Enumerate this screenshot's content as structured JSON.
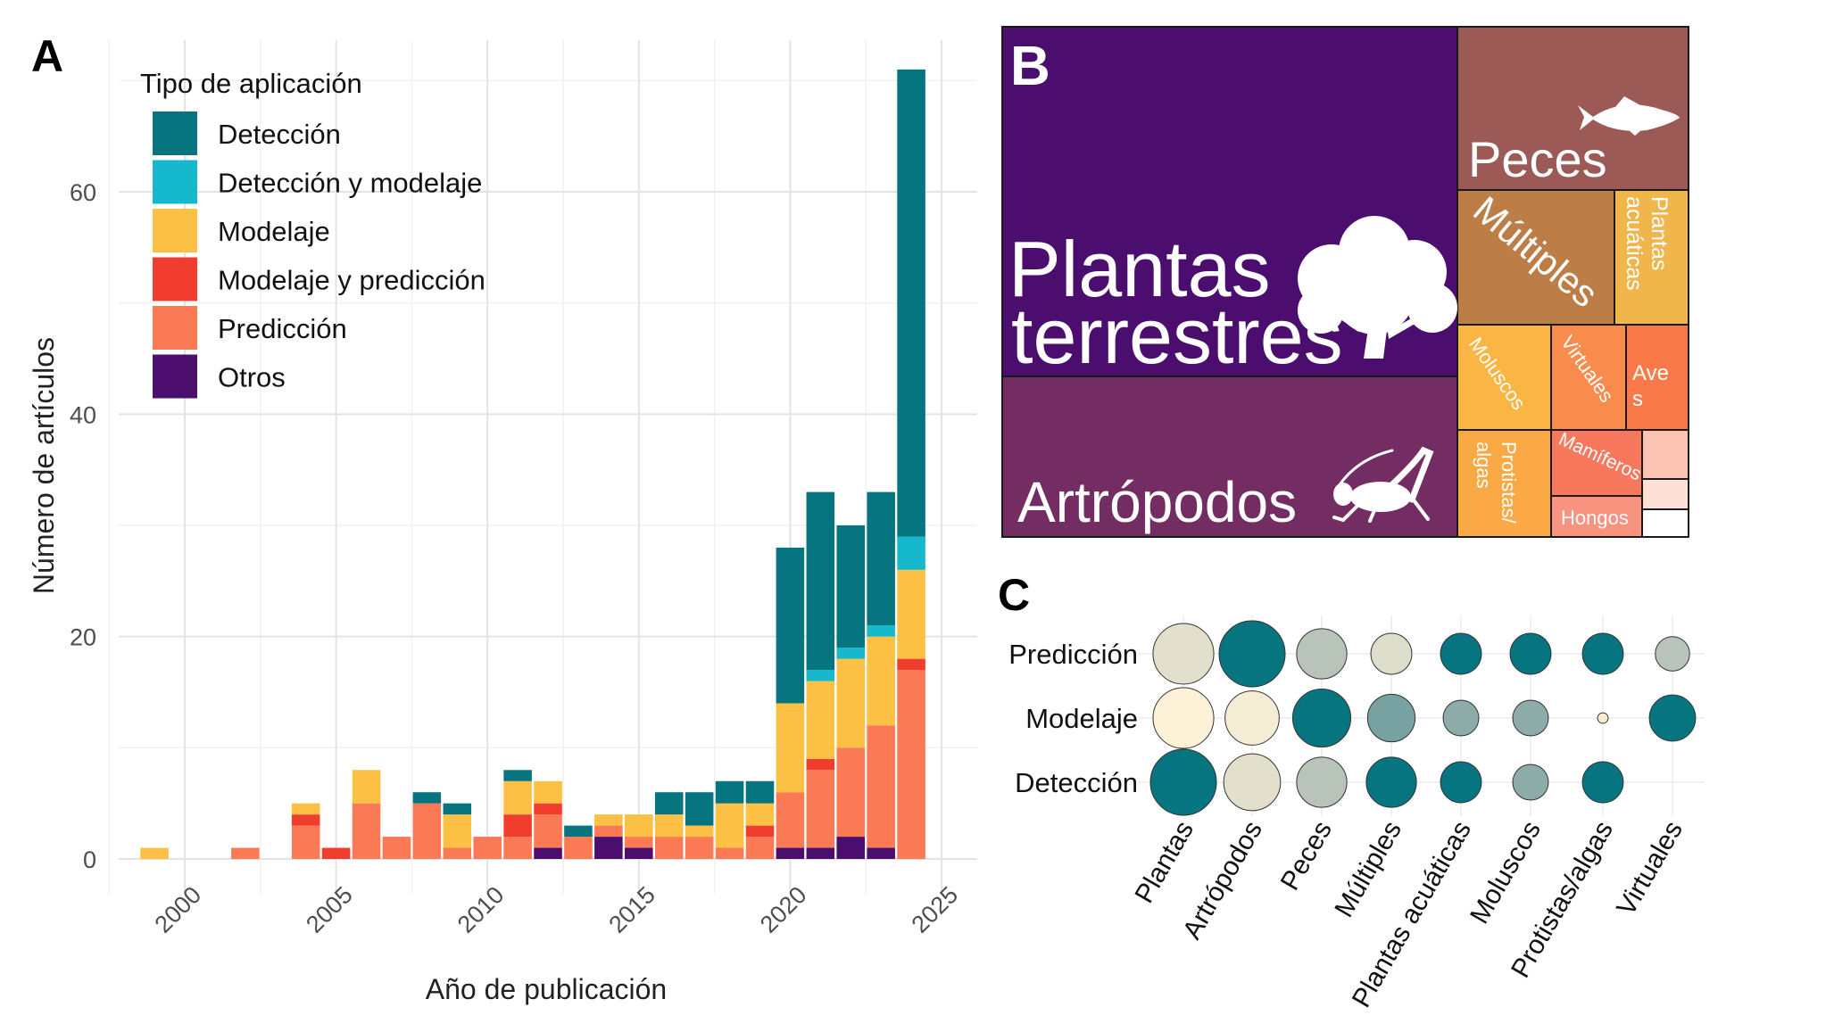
{
  "panel_labels": {
    "a": "A",
    "b": "B",
    "c": "C"
  },
  "colors": {
    "Detección": "#077580",
    "Detección y modelaje": "#15b8cc",
    "Modelaje": "#fbc044",
    "Modelaje y predicción": "#f03d2d",
    "Predicción": "#fa7a56",
    "Otros": "#4b0d6e"
  },
  "chart_data": [
    {
      "type": "bar",
      "stacked": true,
      "xlabel": "Año de publicación",
      "ylabel": "Número de artículos",
      "xlim": [
        1997,
        2026
      ],
      "ylim": [
        0,
        71
      ],
      "xticks": [
        2000,
        2005,
        2010,
        2015,
        2020,
        2025
      ],
      "yticks": [
        0,
        20,
        40,
        60
      ],
      "grid": true,
      "legend": {
        "title": "Tipo de aplicación",
        "position": "top-left",
        "entries": [
          "Detección",
          "Detección y modelaje",
          "Modelaje",
          "Modelaje y predicción",
          "Predicción",
          "Otros"
        ]
      },
      "stack_order": [
        "Otros",
        "Predicción",
        "Modelaje y predicción",
        "Modelaje",
        "Detección y modelaje",
        "Detección"
      ],
      "categories": [
        1999,
        2002,
        2004,
        2005,
        2006,
        2007,
        2008,
        2009,
        2010,
        2011,
        2012,
        2013,
        2014,
        2015,
        2016,
        2017,
        2018,
        2019,
        2020,
        2021,
        2022,
        2023,
        2024
      ],
      "series": [
        {
          "name": "Otros",
          "values": [
            0,
            0,
            0,
            0,
            0,
            0,
            0,
            0,
            0,
            0,
            1,
            0,
            2,
            1,
            0,
            0,
            0,
            0,
            1,
            1,
            2,
            1,
            0
          ]
        },
        {
          "name": "Predicción",
          "values": [
            0,
            1,
            3,
            0,
            5,
            2,
            5,
            1,
            2,
            2,
            3,
            2,
            1,
            1,
            2,
            2,
            1,
            2,
            5,
            7,
            8,
            11,
            17
          ]
        },
        {
          "name": "Modelaje y predicción",
          "values": [
            0,
            0,
            1,
            1,
            0,
            0,
            0,
            0,
            0,
            2,
            1,
            0,
            0,
            0,
            0,
            0,
            0,
            1,
            0,
            1,
            0,
            0,
            1
          ]
        },
        {
          "name": "Modelaje",
          "values": [
            1,
            0,
            1,
            0,
            3,
            0,
            0,
            3,
            0,
            3,
            2,
            0,
            1,
            2,
            2,
            1,
            4,
            2,
            8,
            7,
            8,
            8,
            8
          ]
        },
        {
          "name": "Detección y modelaje",
          "values": [
            0,
            0,
            0,
            0,
            0,
            0,
            0,
            0,
            0,
            0,
            0,
            0,
            0,
            0,
            0,
            0,
            0,
            0,
            0,
            1,
            1,
            1,
            3
          ]
        },
        {
          "name": "Detección",
          "values": [
            0,
            0,
            0,
            0,
            0,
            0,
            1,
            1,
            0,
            1,
            0,
            1,
            0,
            0,
            2,
            3,
            2,
            2,
            14,
            16,
            11,
            12,
            42
          ]
        }
      ]
    },
    {
      "type": "treemap",
      "leaves": [
        {
          "label": "Plantas terrestres",
          "color": "#4b0d6e",
          "text_color": "#ffffff",
          "icon": "tree-icon"
        },
        {
          "label": "Artrópodos",
          "color": "#732d62",
          "text_color": "#ffffff",
          "icon": "cricket-icon"
        },
        {
          "label": "Peces",
          "color": "#9b5a55",
          "text_color": "#ffffff",
          "icon": "fish-icon"
        },
        {
          "label": "Múltiples",
          "color": "#bd7d47",
          "text_color": "#ffffff"
        },
        {
          "label": "Plantas acuáticas",
          "color": "#f0b54b",
          "text_color": "#ffffff"
        },
        {
          "label": "Moluscos",
          "color": "#fbb544",
          "text_color": "#ffffff"
        },
        {
          "label": "Virtuales",
          "color": "#f98c4c",
          "text_color": "#ffffff"
        },
        {
          "label": "Aves",
          "color": "#f97a48",
          "text_color": "#ffffff"
        },
        {
          "label": "Protistas/ algas",
          "color": "#fba944",
          "text_color": "#ffffff"
        },
        {
          "label": "Mamíferos",
          "color": "#f7785c",
          "text_color": "#ffffff"
        },
        {
          "label": "Hongos",
          "color": "#f7937f",
          "text_color": "#ffffff"
        },
        {
          "label": "",
          "color": "#fbc3b2",
          "text_color": "#ffffff"
        },
        {
          "label": "",
          "color": "#fde0d6",
          "text_color": "#ffffff"
        },
        {
          "label": "",
          "color": "#ffffff",
          "text_color": "#ffffff"
        }
      ]
    },
    {
      "type": "bubble",
      "columns": [
        "Plantas",
        "Artrópodos",
        "Peces",
        "Múltiples",
        "Plantas acuáticas",
        "Moluscos",
        "Protistas/algas",
        "Virtuales"
      ],
      "rows": [
        "Predicción",
        "Modelaje",
        "Detección"
      ],
      "cells": [
        [
          {
            "size": 0.92,
            "color": "#e2e0cc"
          },
          {
            "size": 1.0,
            "color": "#077580"
          },
          {
            "size": 0.76,
            "color": "#b8c4b9"
          },
          {
            "size": 0.62,
            "color": "#dcddcb"
          },
          {
            "size": 0.62,
            "color": "#077580"
          },
          {
            "size": 0.62,
            "color": "#077580"
          },
          {
            "size": 0.62,
            "color": "#077580"
          },
          {
            "size": 0.52,
            "color": "#b8c4b9"
          }
        ],
        [
          {
            "size": 0.92,
            "color": "#fdf1d7"
          },
          {
            "size": 0.82,
            "color": "#f4ecd4"
          },
          {
            "size": 0.88,
            "color": "#077580"
          },
          {
            "size": 0.72,
            "color": "#78a2a1"
          },
          {
            "size": 0.54,
            "color": "#8daba9"
          },
          {
            "size": 0.54,
            "color": "#8daba9"
          },
          {
            "size": 0.16,
            "color": "#f7ecd2"
          },
          {
            "size": 0.7,
            "color": "#077580"
          }
        ],
        [
          {
            "size": 1.0,
            "color": "#077580"
          },
          {
            "size": 0.86,
            "color": "#e2e0cc"
          },
          {
            "size": 0.76,
            "color": "#b8c4b9"
          },
          {
            "size": 0.76,
            "color": "#077580"
          },
          {
            "size": 0.62,
            "color": "#077580"
          },
          {
            "size": 0.54,
            "color": "#8daba9"
          },
          {
            "size": 0.62,
            "color": "#077580"
          },
          {
            "size": 0,
            "color": "#ffffff"
          }
        ]
      ]
    }
  ]
}
